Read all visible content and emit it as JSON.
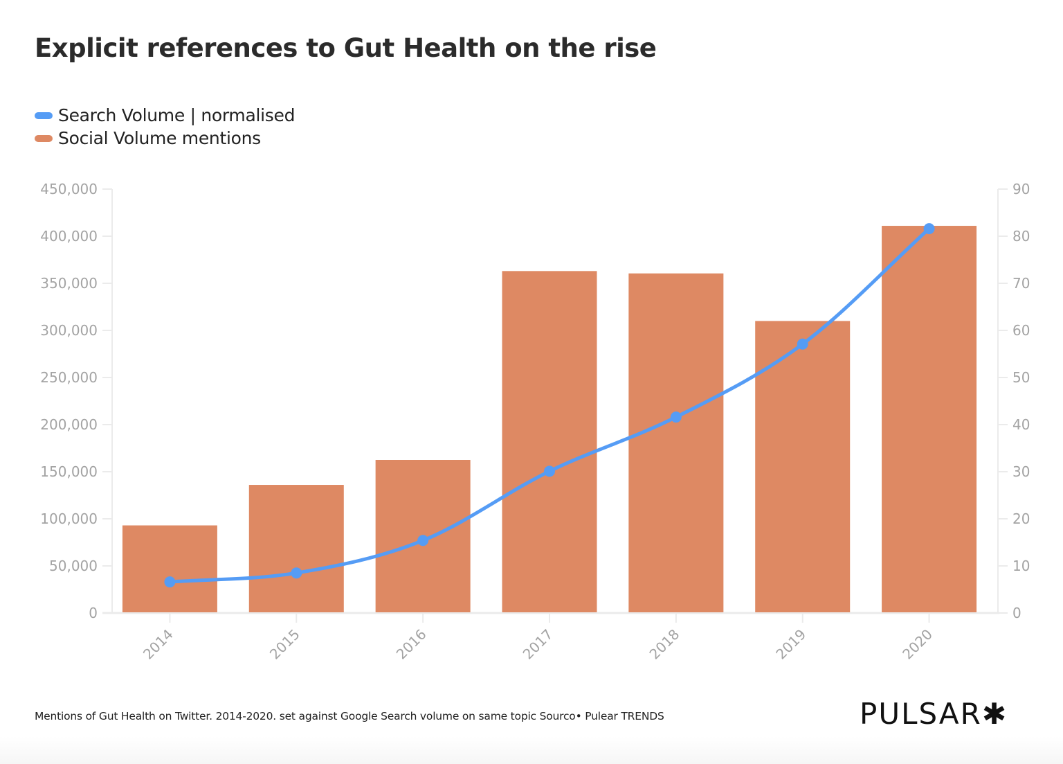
{
  "chart_data": {
    "type": "bar+line",
    "title": "Explicit references to Gut Health on the rise",
    "categories": [
      "2014",
      "2015",
      "2016",
      "2017",
      "2018",
      "2019",
      "2020"
    ],
    "series": [
      {
        "name": "Social Volume mentions",
        "type": "bar",
        "axis": "left",
        "color": "#de8963",
        "values": [
          93000,
          136000,
          162500,
          363000,
          360500,
          310000,
          411000
        ]
      },
      {
        "name": "Search Volume | normalised",
        "type": "line",
        "axis": "right",
        "color": "#559cf5",
        "values": [
          6.6,
          8.5,
          15.4,
          30.1,
          41.6,
          57.1,
          81.6
        ]
      }
    ],
    "y_left": {
      "lim": [
        0,
        450000
      ],
      "ticks": [
        0,
        50000,
        100000,
        150000,
        200000,
        250000,
        300000,
        350000,
        400000,
        450000
      ],
      "tick_labels": [
        "0",
        "50,000",
        "100,000",
        "150,000",
        "200,000",
        "250,000",
        "300,000",
        "350,000",
        "400,000",
        "450,000"
      ]
    },
    "y_right": {
      "lim": [
        0,
        90
      ],
      "ticks": [
        0,
        10,
        20,
        30,
        40,
        50,
        60,
        70,
        80,
        90
      ],
      "tick_labels": [
        "0",
        "10",
        "20",
        "30",
        "40",
        "50",
        "60",
        "70",
        "80",
        "90"
      ]
    },
    "xlabel": "",
    "ylabel": "",
    "grid": false,
    "legend_position": "top-left"
  },
  "legend": [
    {
      "label": "Search Volume | normalised",
      "color": "#559cf5"
    },
    {
      "label": "Social Volume mentions",
      "color": "#de8963"
    }
  ],
  "footnote": "Mentions of Gut Health on Twitter. 2014-2020. set against Google Search volume on same topic Sourco• Pulear TRENDS",
  "logo": "PULSAR✱"
}
